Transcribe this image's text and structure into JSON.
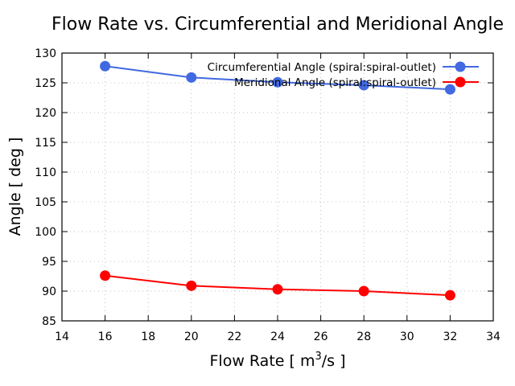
{
  "chart_data": {
    "type": "line",
    "title": "Flow Rate vs. Circumferential and Meridional Angle",
    "xlabel": "Flow Rate [ m³/s ]",
    "xlabel_parts": {
      "pre": "Flow Rate [ m",
      "sup": "3",
      "post": "/s ]"
    },
    "ylabel": "Angle [ deg ]",
    "xlim": [
      14,
      34
    ],
    "ylim": [
      85,
      130
    ],
    "xticks": [
      14,
      16,
      18,
      20,
      22,
      24,
      26,
      28,
      30,
      32,
      34
    ],
    "yticks": [
      85,
      90,
      95,
      100,
      105,
      110,
      115,
      120,
      125,
      130
    ],
    "grid": true,
    "legend_position": "top-right",
    "x": [
      16,
      20,
      24,
      28,
      32
    ],
    "series": [
      {
        "name": "Circumferential Angle (spiral:spiral-outlet)",
        "color": "#4169e1",
        "values": [
          127.8,
          125.9,
          125.1,
          124.6,
          123.9
        ]
      },
      {
        "name": "Meridional Angle (spiral:spiral-outlet)",
        "color": "#ff0000",
        "values": [
          92.6,
          90.9,
          90.3,
          90.0,
          89.3
        ]
      }
    ]
  }
}
